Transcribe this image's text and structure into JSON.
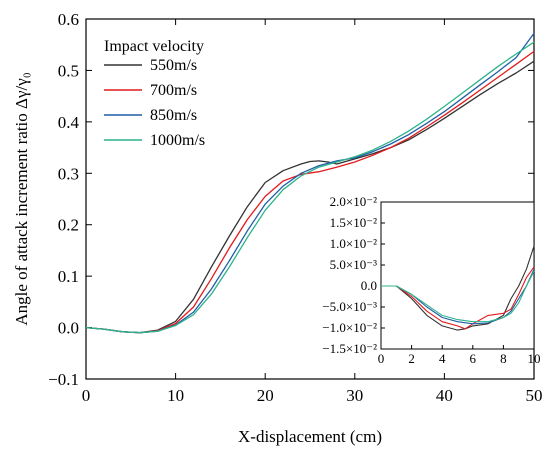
{
  "chart_data": [
    {
      "type": "line",
      "xlabel": "X-displacement (cm)",
      "ylabel": "Angle of attack increment ratio Δγ/γ₀",
      "xlim": [
        0,
        50
      ],
      "ylim": [
        -0.1,
        0.6
      ],
      "x_ticks": [
        "0",
        "10",
        "20",
        "30",
        "40",
        "50"
      ],
      "y_ticks": [
        "−0.1",
        "0.0",
        "0.1",
        "0.2",
        "0.3",
        "0.4",
        "0.5",
        "0.6"
      ],
      "grid": false,
      "legend_title": "Impact velocity",
      "legend_position": "top-left",
      "series": [
        {
          "name": "550m/s",
          "color": "#333333",
          "x": [
            0,
            2,
            4,
            6,
            8,
            10,
            12,
            14,
            16,
            18,
            20,
            22,
            24,
            25,
            26,
            27,
            28,
            30,
            32,
            34,
            36,
            38,
            40,
            42,
            44,
            46,
            48,
            50
          ],
          "y": [
            0.0,
            -0.003,
            -0.008,
            -0.01,
            -0.005,
            0.012,
            0.055,
            0.118,
            0.178,
            0.235,
            0.282,
            0.305,
            0.318,
            0.323,
            0.324,
            0.322,
            0.318,
            0.328,
            0.338,
            0.35,
            0.365,
            0.385,
            0.407,
            0.43,
            0.453,
            0.475,
            0.495,
            0.518
          ]
        },
        {
          "name": "700m/s",
          "color": "#e41a1c",
          "x": [
            0,
            2,
            4,
            6,
            8,
            10,
            12,
            14,
            16,
            18,
            20,
            22,
            24,
            26,
            28,
            30,
            32,
            34,
            36,
            38,
            40,
            42,
            44,
            46,
            48,
            50
          ],
          "y": [
            0.0,
            -0.003,
            -0.008,
            -0.01,
            -0.006,
            0.008,
            0.04,
            0.095,
            0.155,
            0.21,
            0.255,
            0.285,
            0.298,
            0.303,
            0.312,
            0.322,
            0.335,
            0.35,
            0.368,
            0.39,
            0.413,
            0.437,
            0.462,
            0.487,
            0.512,
            0.537
          ]
        },
        {
          "name": "850m/s",
          "color": "#1f5fa8",
          "x": [
            0,
            2,
            4,
            6,
            8,
            10,
            12,
            14,
            16,
            18,
            20,
            22,
            24,
            26,
            28,
            30,
            32,
            34,
            36,
            38,
            40,
            42,
            44,
            46,
            48,
            50
          ],
          "y": [
            0.0,
            -0.003,
            -0.008,
            -0.01,
            -0.007,
            0.005,
            0.03,
            0.075,
            0.13,
            0.188,
            0.24,
            0.275,
            0.3,
            0.315,
            0.324,
            0.33,
            0.342,
            0.357,
            0.375,
            0.397,
            0.42,
            0.446,
            0.472,
            0.498,
            0.525,
            0.572
          ]
        },
        {
          "name": "1000m/s",
          "color": "#2db38a",
          "x": [
            0,
            2,
            4,
            6,
            8,
            10,
            12,
            14,
            16,
            18,
            20,
            22,
            24,
            26,
            28,
            30,
            32,
            34,
            36,
            38,
            40,
            42,
            44,
            46,
            48,
            50
          ],
          "y": [
            0.0,
            -0.003,
            -0.008,
            -0.01,
            -0.007,
            0.004,
            0.025,
            0.065,
            0.118,
            0.175,
            0.228,
            0.268,
            0.295,
            0.312,
            0.322,
            0.332,
            0.345,
            0.362,
            0.382,
            0.405,
            0.43,
            0.456,
            0.482,
            0.508,
            0.532,
            0.555
          ]
        }
      ]
    },
    {
      "type": "line",
      "inset": true,
      "xlim": [
        0,
        10
      ],
      "ylim": [
        -0.015,
        0.02
      ],
      "x_ticks": [
        "0",
        "2",
        "4",
        "6",
        "8",
        "10"
      ],
      "y_ticks": [
        "−1.5×10⁻²",
        "−1.0×10⁻²",
        "−5.0×10⁻³",
        "0.0",
        "5.0×10⁻³",
        "1.0×10⁻²",
        "1.5×10⁻²",
        "2.0×10⁻²"
      ],
      "y_tick_values": [
        -0.015,
        -0.01,
        -0.005,
        0.0,
        0.005,
        0.01,
        0.015,
        0.02
      ],
      "series": [
        {
          "name": "550m/s",
          "color": "#333333",
          "x": [
            0,
            1,
            2,
            3,
            4,
            5,
            5.5,
            6,
            7,
            8,
            8.5,
            9,
            9.5,
            10
          ],
          "y": [
            0.0,
            0.0,
            -0.003,
            -0.007,
            -0.0095,
            -0.0105,
            -0.0102,
            -0.0095,
            -0.009,
            -0.007,
            -0.003,
            0.0,
            0.004,
            0.0095
          ]
        },
        {
          "name": "700m/s",
          "color": "#e41a1c",
          "x": [
            0,
            1,
            2,
            3,
            4,
            5,
            5.5,
            6,
            7,
            8,
            8.5,
            9,
            9.5,
            10
          ],
          "y": [
            0.0,
            0.0,
            -0.0025,
            -0.006,
            -0.0085,
            -0.0095,
            -0.0102,
            -0.009,
            -0.007,
            -0.0065,
            -0.0055,
            -0.002,
            0.002,
            0.0045
          ]
        },
        {
          "name": "850m/s",
          "color": "#1f5fa8",
          "x": [
            0,
            1,
            2,
            3,
            4,
            5,
            6,
            7,
            8,
            8.5,
            9,
            9.5,
            10
          ],
          "y": [
            0.0,
            0.0,
            -0.002,
            -0.005,
            -0.0075,
            -0.0085,
            -0.009,
            -0.0088,
            -0.0075,
            -0.006,
            -0.003,
            0.0,
            0.004
          ]
        },
        {
          "name": "1000m/s",
          "color": "#2db38a",
          "x": [
            0,
            1,
            2,
            3,
            4,
            5,
            6,
            7,
            8,
            8.5,
            9,
            9.5,
            10
          ],
          "y": [
            0.0,
            0.0,
            -0.002,
            -0.0045,
            -0.007,
            -0.008,
            -0.0085,
            -0.0085,
            -0.0075,
            -0.0065,
            -0.004,
            0.0,
            0.0035
          ]
        }
      ]
    }
  ]
}
